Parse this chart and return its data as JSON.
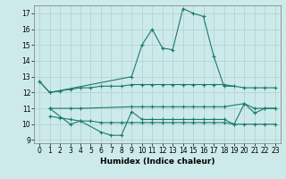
{
  "xlabel": "Humidex (Indice chaleur)",
  "xlim": [
    -0.5,
    23.5
  ],
  "ylim": [
    8.8,
    17.5
  ],
  "xticks": [
    0,
    1,
    2,
    3,
    4,
    5,
    6,
    7,
    8,
    9,
    10,
    11,
    12,
    13,
    14,
    15,
    16,
    17,
    18,
    19,
    20,
    21,
    22,
    23
  ],
  "yticks": [
    9,
    10,
    11,
    12,
    13,
    14,
    15,
    16,
    17
  ],
  "bg_color": "#cdeaea",
  "line_color": "#1a7a6e",
  "grid_color": "#b0d0cc",
  "series": [
    {
      "x": [
        0,
        1,
        9,
        10,
        11,
        12,
        13,
        14,
        15,
        16,
        17,
        18,
        19
      ],
      "y": [
        12.7,
        12.0,
        13.0,
        15.0,
        16.0,
        14.8,
        14.7,
        17.3,
        17.0,
        16.8,
        14.3,
        12.4,
        12.4
      ]
    },
    {
      "x": [
        0,
        1,
        2,
        3,
        4,
        5,
        6,
        7,
        8,
        9,
        10,
        11,
        12,
        13,
        14,
        15,
        16,
        17,
        18,
        20,
        21,
        22,
        23
      ],
      "y": [
        12.7,
        12.0,
        12.1,
        12.2,
        12.3,
        12.3,
        12.4,
        12.4,
        12.4,
        12.5,
        12.5,
        12.5,
        12.5,
        12.5,
        12.5,
        12.5,
        12.5,
        12.5,
        12.5,
        12.3,
        12.3,
        12.3,
        12.3
      ]
    },
    {
      "x": [
        1,
        3,
        4,
        9,
        10,
        11,
        12,
        13,
        14,
        15,
        16,
        17,
        18,
        20,
        21,
        22,
        23
      ],
      "y": [
        11.0,
        11.0,
        11.0,
        11.1,
        11.1,
        11.1,
        11.1,
        11.1,
        11.1,
        11.1,
        11.1,
        11.1,
        11.1,
        11.3,
        11.0,
        11.0,
        11.0
      ]
    },
    {
      "x": [
        1,
        3,
        4,
        6,
        7,
        8,
        9,
        10,
        11,
        12,
        13,
        14,
        15,
        16,
        17,
        18,
        19,
        20,
        21,
        22,
        23
      ],
      "y": [
        11.0,
        10.0,
        10.2,
        9.5,
        9.3,
        9.3,
        10.8,
        10.3,
        10.3,
        10.3,
        10.3,
        10.3,
        10.3,
        10.3,
        10.3,
        10.3,
        10.0,
        11.3,
        10.7,
        11.0,
        11.0
      ]
    },
    {
      "x": [
        1,
        2,
        3,
        4,
        5,
        6,
        7,
        8,
        9,
        10,
        11,
        12,
        13,
        14,
        15,
        16,
        17,
        18,
        19,
        20,
        21,
        22,
        23
      ],
      "y": [
        10.5,
        10.4,
        10.3,
        10.2,
        10.2,
        10.1,
        10.1,
        10.1,
        10.1,
        10.1,
        10.1,
        10.1,
        10.1,
        10.1,
        10.1,
        10.1,
        10.1,
        10.1,
        10.0,
        10.0,
        10.0,
        10.0,
        10.0
      ]
    }
  ]
}
